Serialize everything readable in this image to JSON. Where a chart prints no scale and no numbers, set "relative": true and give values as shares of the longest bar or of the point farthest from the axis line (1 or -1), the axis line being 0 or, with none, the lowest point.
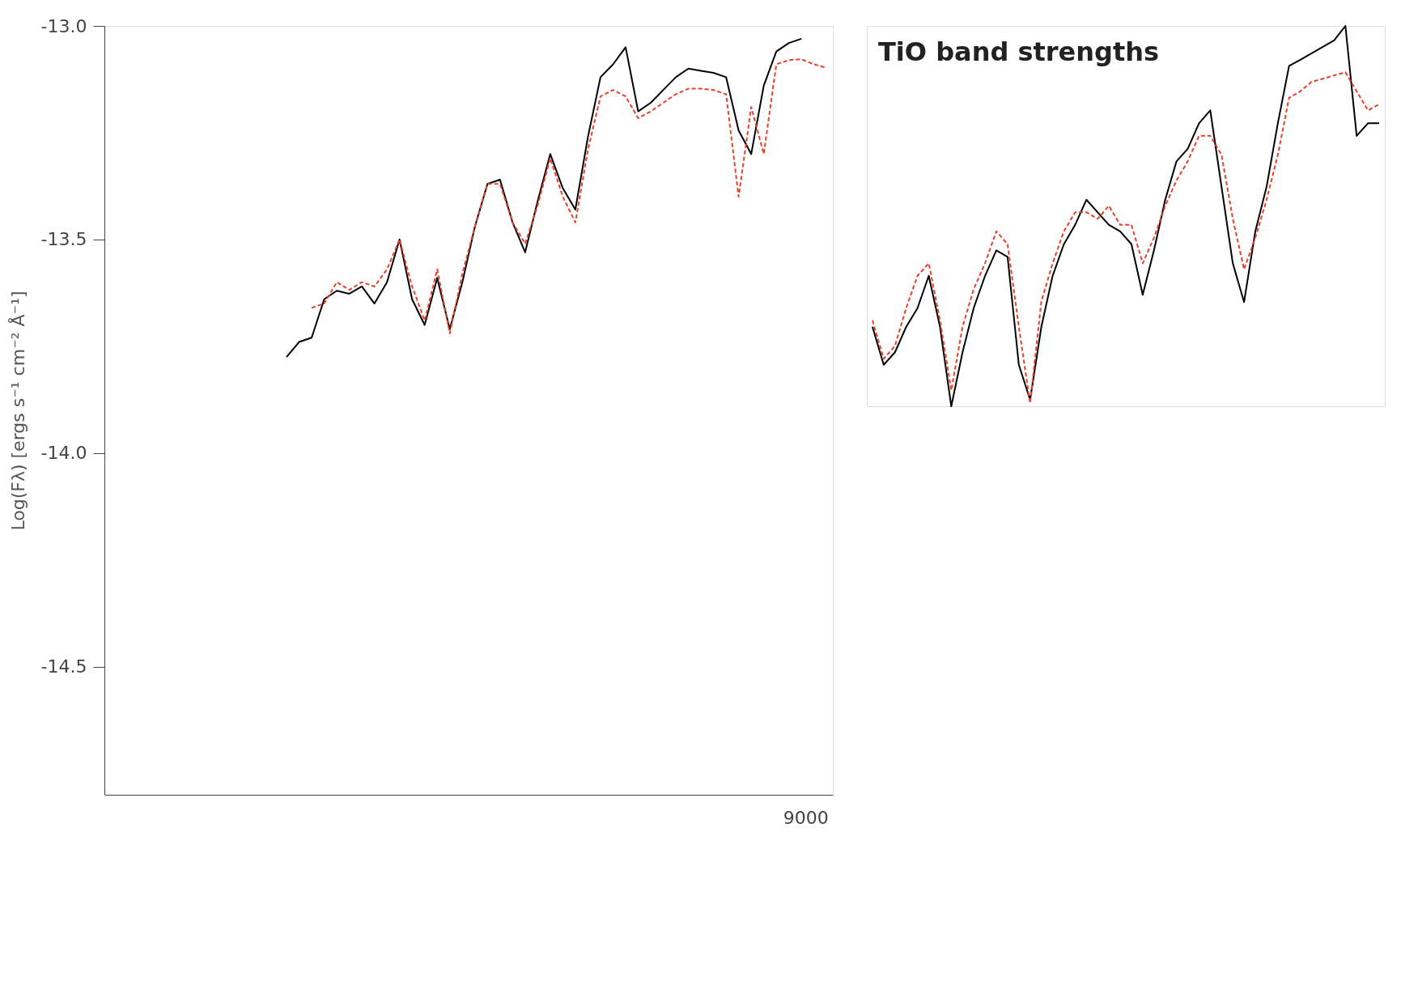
{
  "chart_data": [
    {
      "type": "line",
      "ylabel": "Log(Fλ) [ergs s⁻¹ cm⁻² Å⁻¹]",
      "categories": [
        null,
        null,
        null,
        null,
        null,
        null,
        null,
        null,
        null,
        null,
        null,
        null,
        null,
        null,
        null,
        null,
        null,
        null,
        null,
        null,
        null,
        null,
        null,
        null,
        null,
        null,
        null,
        null,
        null,
        null,
        null,
        null,
        null,
        null,
        null,
        null,
        null,
        null,
        null,
        null,
        null,
        null,
        null,
        null,
        null,
        null,
        null,
        null,
        null,
        null,
        null,
        null,
        null,
        null,
        null,
        null,
        null,
        null
      ],
      "ylim": [
        -14.8,
        -13.0
      ],
      "yticks": [
        {
          "value": -13,
          "label": "-13.0"
        },
        {
          "value": -13.5,
          "label": "-13.5"
        },
        {
          "value": -14,
          "label": "-14.0"
        },
        {
          "value": -14.5,
          "label": "-14.5"
        }
      ],
      "tick_labels": "y",
      "grid": false,
      "marker": "none",
      "annotations": [
        "9000"
      ],
      "series": [
        {
          "color": "#000000",
          "line_style": "solid",
          "values": [
            null,
            null,
            null,
            null,
            null,
            null,
            null,
            null,
            null,
            null,
            null,
            null,
            null,
            null,
            -13.775,
            -13.74,
            -13.73,
            -13.64,
            -13.62,
            -13.627,
            -13.61,
            -13.65,
            -13.6,
            -13.5,
            -13.64,
            -13.7,
            -13.59,
            -13.71,
            -13.6,
            -13.47,
            -13.37,
            -13.36,
            -13.46,
            -13.53,
            -13.41,
            -13.3,
            -13.38,
            -13.43,
            -13.26,
            -13.12,
            -13.09,
            -13.05,
            -13.2,
            -13.18,
            -13.15,
            -13.12,
            -13.1,
            -13.105,
            -13.11,
            -13.12,
            -13.245,
            -13.3,
            -13.14,
            -13.06,
            -13.04,
            -13.03,
            null,
            null
          ]
        },
        {
          "color": "#e8412c",
          "line_style": "dashed",
          "values": [
            null,
            null,
            null,
            null,
            null,
            null,
            null,
            null,
            null,
            null,
            null,
            null,
            null,
            null,
            null,
            null,
            -13.66,
            -13.65,
            -13.6,
            -13.618,
            -13.6,
            -13.61,
            -13.57,
            -13.5,
            -13.61,
            -13.69,
            -13.57,
            -13.72,
            -13.58,
            -13.47,
            -13.37,
            -13.37,
            -13.46,
            -13.51,
            -13.42,
            -13.31,
            -13.4,
            -13.46,
            -13.29,
            -13.165,
            -13.15,
            -13.165,
            -13.216,
            -13.2,
            -13.18,
            -13.16,
            -13.147,
            -13.147,
            -13.15,
            -13.16,
            -13.4,
            -13.19,
            -13.3,
            -13.09,
            -13.08,
            -13.078,
            -13.09,
            -13.098
          ]
        }
      ]
    },
    {
      "type": "line",
      "relative": true,
      "tick_labels": false,
      "grid": false,
      "marker": "none",
      "annotations": [
        "TiO band strengths"
      ],
      "categories": [
        null,
        null,
        null,
        null,
        null,
        null,
        null,
        null,
        null,
        null,
        null,
        null,
        null,
        null,
        null,
        null,
        null,
        null,
        null,
        null,
        null,
        null,
        null,
        null,
        null,
        null,
        null,
        null,
        null,
        null,
        null,
        null,
        null,
        null,
        null,
        null,
        null,
        null,
        null,
        null,
        null,
        null,
        null,
        null,
        null,
        null
      ],
      "series": [
        {
          "color": "#000000",
          "line_style": "solid",
          "values": [
            0.209,
            0.109,
            0.142,
            0.209,
            0.258,
            0.343,
            0.209,
            0,
            0.142,
            0.259,
            0.343,
            0.41,
            0.393,
            0.109,
            0.017,
            0.209,
            0.343,
            0.426,
            0.477,
            0.543,
            0.51,
            0.477,
            0.46,
            0.426,
            0.293,
            0.41,
            0.543,
            0.644,
            0.677,
            0.744,
            0.778,
            0.577,
            0.376,
            0.274,
            0.46,
            0.577,
            0.744,
            0.895,
            0.911,
            0.928,
            0.945,
            0.962,
            1,
            0.711,
            0.744,
            0.744
          ]
        },
        {
          "color": "#e8412c",
          "line_style": "dashed",
          "values": [
            0.226,
            0.125,
            0.159,
            0.259,
            0.343,
            0.376,
            0.226,
            0.042,
            0.209,
            0.309,
            0.376,
            0.46,
            0.426,
            0.209,
            0.008,
            0.276,
            0.376,
            0.46,
            0.51,
            0.51,
            0.493,
            0.527,
            0.477,
            0.477,
            0.376,
            0.443,
            0.527,
            0.594,
            0.644,
            0.711,
            0.711,
            0.661,
            0.493,
            0.36,
            0.443,
            0.543,
            0.661,
            0.811,
            0.828,
            0.853,
            0.861,
            0.87,
            0.878,
            0.828,
            0.778,
            0.794
          ]
        }
      ]
    }
  ]
}
